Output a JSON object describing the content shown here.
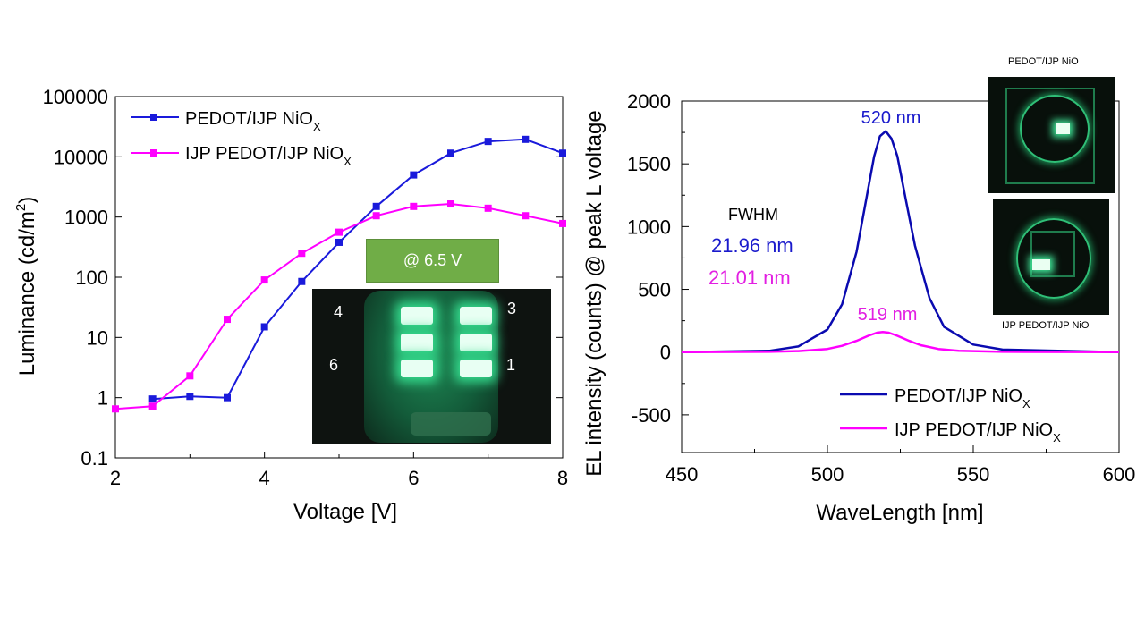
{
  "chart_data": [
    {
      "type": "line",
      "xlabel": "Voltage [V]",
      "ylabel": "Luminance (cd/m²)",
      "xlim": [
        2,
        8
      ],
      "ylim": [
        0.1,
        100000
      ],
      "yscale": "log",
      "xticks": [
        "2",
        "4",
        "6",
        "8"
      ],
      "yticks": [
        "0.1",
        "1",
        "10",
        "100",
        "1000",
        "10000",
        "100000"
      ],
      "legend_position": "top-left",
      "series": [
        {
          "name": "PEDOT/IJP NiOX",
          "color": "#1a1adb",
          "x": [
            2.5,
            3,
            3.5,
            4,
            4.5,
            5,
            5.5,
            6,
            6.5,
            7,
            7.5,
            8
          ],
          "y": [
            0.95,
            1.05,
            1.0,
            15,
            85,
            380,
            1500,
            5000,
            11500,
            18000,
            19500,
            11500
          ]
        },
        {
          "name": "IJP PEDOT/IJP NiOX",
          "color": "#ff00ff",
          "x": [
            2,
            2.5,
            3,
            3.5,
            4,
            4.5,
            5,
            5.5,
            6,
            6.5,
            7,
            7.5,
            8
          ],
          "y": [
            0.65,
            0.72,
            2.3,
            20,
            90,
            250,
            560,
            1050,
            1500,
            1650,
            1400,
            1050,
            780
          ]
        }
      ]
    },
    {
      "type": "line",
      "xlabel": "WaveLength [nm]",
      "ylabel": "EL intensity (counts) @ peak L voltage",
      "xlim": [
        450,
        600
      ],
      "ylim": [
        -800,
        2000
      ],
      "xticks": [
        "450",
        "500",
        "550",
        "600"
      ],
      "yticks": [
        "-500",
        "0",
        "500",
        "1000",
        "1500",
        "2000"
      ],
      "legend_position": "bottom-right",
      "series": [
        {
          "name": "PEDOT/IJP NiOX",
          "color": "#0a0ab0",
          "peak_wavelength": 520,
          "fwhm": 21.96,
          "peak_value": 1760,
          "x": [
            450,
            480,
            490,
            500,
            505,
            510,
            513,
            516,
            518,
            520,
            522,
            524,
            527,
            530,
            535,
            540,
            550,
            560,
            600
          ],
          "y": [
            0,
            10,
            45,
            180,
            380,
            800,
            1180,
            1560,
            1720,
            1760,
            1700,
            1560,
            1200,
            850,
            430,
            200,
            60,
            20,
            0
          ]
        },
        {
          "name": "IJP PEDOT/IJP NiOX",
          "color": "#ff00ff",
          "peak_wavelength": 519,
          "fwhm": 21.01,
          "peak_value": 160,
          "x": [
            450,
            480,
            490,
            500,
            505,
            510,
            514,
            517,
            519,
            521,
            524,
            528,
            532,
            538,
            545,
            560,
            600
          ],
          "y": [
            0,
            2,
            8,
            25,
            50,
            90,
            130,
            155,
            160,
            155,
            130,
            90,
            55,
            25,
            10,
            2,
            0
          ]
        }
      ]
    }
  ],
  "left_chart": {
    "xlabel": "Voltage [V]",
    "ylabel": "Luminance (cd/m",
    "ylabel_sup": "2",
    "ylabel_end": ")",
    "legend": [
      {
        "main": "PEDOT/IJP NiO",
        "sub": "X"
      },
      {
        "main": "IJP PEDOT/IJP NiO",
        "sub": "X"
      }
    ],
    "banner": "@ 6.5 V",
    "device_labels": [
      "4",
      "3",
      "6",
      "1"
    ]
  },
  "right_chart": {
    "xlabel": "WaveLength [nm]",
    "ylabel": "EL intensity (counts) @ peak L voltage",
    "peak_label_1": "520 nm",
    "peak_label_2": "519 nm",
    "fwhm_title": "FWHM",
    "fwhm_1": "21.96 nm",
    "fwhm_2": "21.01 nm",
    "legend": [
      {
        "main": "PEDOT/IJP NiO",
        "sub": "X"
      },
      {
        "main": "IJP PEDOT/IJP NiO",
        "sub": "X"
      }
    ],
    "inset_top_label": "PEDOT/IJP NiO",
    "inset_bottom_label": "IJP PEDOT/IJP NiO"
  }
}
